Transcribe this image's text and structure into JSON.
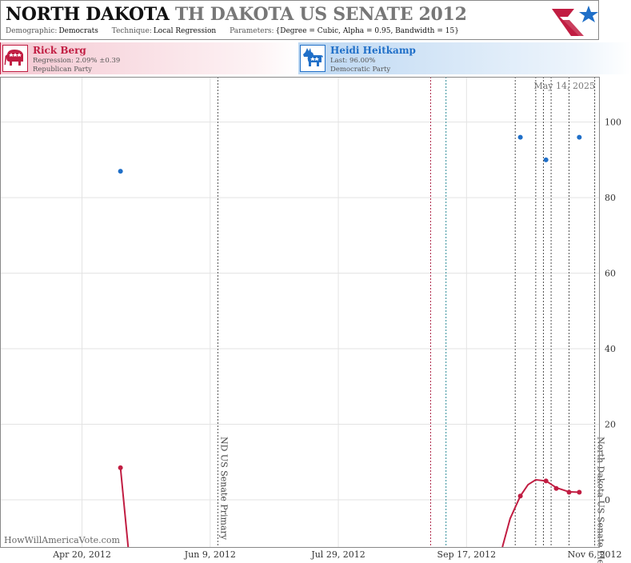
{
  "header": {
    "title_main": "NORTH DAKOTA",
    "title_rest": "TH DAKOTA US SENATE 2012",
    "demographic_label": "Demographic:",
    "demographic_value": "Democrats",
    "technique_label": "Technique:",
    "technique_value": "Local Regression",
    "parameters_label": "Parameters:",
    "parameters_value": "{Degree = Cubic, Alpha = 0.95, Bandwidth = 15}"
  },
  "candidates": {
    "republican": {
      "name": "Rick Berg",
      "stat": "Regression: 2.09% ±0.39",
      "party": "Republican Party",
      "color": "#c11d42",
      "icon": "elephant-icon"
    },
    "democrat": {
      "name": "Heidi Heitkamp",
      "stat": "Last: 96.00%",
      "party": "Democratic Party",
      "color": "#1f6fc8",
      "icon": "donkey-icon"
    }
  },
  "chart_data": {
    "type": "scatter",
    "date_stamp": "May 14, 2025",
    "watermark": "HowWillAmericaVote.com",
    "x_ticks": [
      "Apr 20, 2012",
      "Jun 9, 2012",
      "Jul 29, 2012",
      "Sep 17, 2012",
      "Nov 6, 2012"
    ],
    "y_ticks": [
      0,
      20,
      40,
      60,
      80,
      100
    ],
    "xlim": [
      "2012-03-19",
      "2012-11-08"
    ],
    "ylim": [
      -12.5,
      112
    ],
    "events": [
      {
        "date": "2012-06-12",
        "label": "ND US Senate Primary"
      },
      {
        "date": "2012-11-06",
        "label": "North Dakota US Senate Election"
      }
    ],
    "markers": [
      {
        "date": "2012-09-03",
        "kind": "red"
      },
      {
        "date": "2012-09-09",
        "kind": "teal"
      },
      {
        "date": "2012-10-06",
        "kind": "dark"
      },
      {
        "date": "2012-10-14",
        "kind": "dark"
      },
      {
        "date": "2012-10-17",
        "kind": "dark"
      },
      {
        "date": "2012-10-20",
        "kind": "dark"
      },
      {
        "date": "2012-10-27",
        "kind": "dark"
      }
    ],
    "series": [
      {
        "party": "democrat",
        "points": [
          {
            "x": "2012-05-05",
            "y": 87
          },
          {
            "x": "2012-10-08",
            "y": 96
          },
          {
            "x": "2012-10-18",
            "y": 90
          },
          {
            "x": "2012-10-31",
            "y": 96
          }
        ]
      },
      {
        "party": "republican",
        "points": [
          {
            "x": "2012-05-05",
            "y": 8.5
          },
          {
            "x": "2012-10-08",
            "y": 1
          },
          {
            "x": "2012-10-18",
            "y": 5
          },
          {
            "x": "2012-10-22",
            "y": 3
          },
          {
            "x": "2012-10-27",
            "y": 2
          },
          {
            "x": "2012-10-31",
            "y": 2
          }
        ],
        "curve": [
          {
            "x": "2012-05-05",
            "y": 8.5
          },
          {
            "x": "2012-05-08",
            "y": -12.5
          },
          {
            "x": "2012-10-01",
            "y": -12.5
          },
          {
            "x": "2012-10-04",
            "y": -5
          },
          {
            "x": "2012-10-08",
            "y": 1
          },
          {
            "x": "2012-10-11",
            "y": 4
          },
          {
            "x": "2012-10-14",
            "y": 5.3
          },
          {
            "x": "2012-10-18",
            "y": 5
          },
          {
            "x": "2012-10-22",
            "y": 3.2
          },
          {
            "x": "2012-10-27",
            "y": 2.1
          },
          {
            "x": "2012-10-31",
            "y": 2
          }
        ]
      }
    ]
  }
}
